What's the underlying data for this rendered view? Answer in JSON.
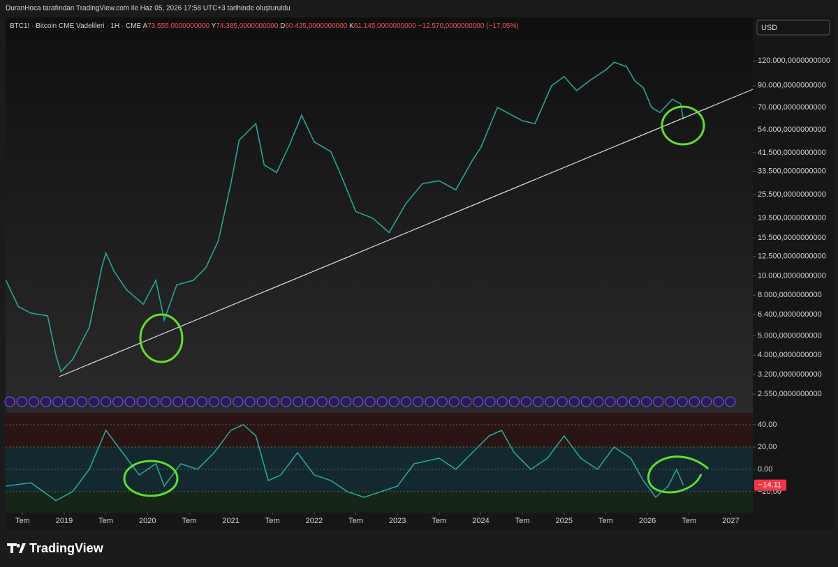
{
  "header": {
    "text": "DuranHoca tarafından TradingView.com ile Haz 05, 2026 17:58 UTC+3 tarihinde oluşturuldu"
  },
  "legend": {
    "symbol": "BTC1! · Bitcoin CME Vadelileri · 1H · CME",
    "open_key": "A",
    "open": "73.555,0000000000",
    "high_key": "Y",
    "high": "74.385,0000000000",
    "low_key": "D",
    "low": "60.435,0000000000",
    "close_key": "K",
    "close": "61.145,0000000000",
    "change": "−12.570,0000000000 (−17,05%)"
  },
  "currency": "USD",
  "brand": "TradingView",
  "chart_data": [
    {
      "type": "line",
      "log_scale": true,
      "color": "#26a69a",
      "xlim": [
        2018.296,
        2027.265
      ],
      "ylim": [
        2120,
        198000
      ],
      "yticks": [
        {
          "value": 120000,
          "label": "120.000,0000000000"
        },
        {
          "value": 90000,
          "label": "90.000,0000000000"
        },
        {
          "value": 70000,
          "label": "70.000,0000000000"
        },
        {
          "value": 54000,
          "label": "54.000,0000000000"
        },
        {
          "value": 41500,
          "label": "41.500,0000000000"
        },
        {
          "value": 33500,
          "label": "33.500,0000000000"
        },
        {
          "value": 25500,
          "label": "25.500,0000000000"
        },
        {
          "value": 19500,
          "label": "19.500,0000000000"
        },
        {
          "value": 15500,
          "label": "15.500,0000000000"
        },
        {
          "value": 12500,
          "label": "12.500,0000000000"
        },
        {
          "value": 10000,
          "label": "10.000,0000000000"
        },
        {
          "value": 8000,
          "label": "8.000,0000000000"
        },
        {
          "value": 6400,
          "label": "6.400,0000000000"
        },
        {
          "value": 5000,
          "label": "5.000,0000000000"
        },
        {
          "value": 4000,
          "label": "4.000,0000000000"
        },
        {
          "value": 3200,
          "label": "3.200,0000000000"
        },
        {
          "value": 2550,
          "label": "2.550,0000000000"
        }
      ],
      "x": [
        2018.3,
        2018.45,
        2018.6,
        2018.8,
        2018.9,
        2018.96,
        2019.1,
        2019.3,
        2019.45,
        2019.5,
        2019.6,
        2019.75,
        2019.95,
        2020.1,
        2020.2,
        2020.35,
        2020.55,
        2020.7,
        2020.85,
        2021.0,
        2021.1,
        2021.3,
        2021.4,
        2021.55,
        2021.7,
        2021.85,
        2022.0,
        2022.2,
        2022.35,
        2022.5,
        2022.7,
        2022.9,
        2023.1,
        2023.3,
        2023.5,
        2023.7,
        2023.9,
        2024.0,
        2024.2,
        2024.5,
        2024.65,
        2024.85,
        2025.0,
        2025.15,
        2025.3,
        2025.5,
        2025.6,
        2025.75,
        2025.85,
        2025.95,
        2026.05,
        2026.15,
        2026.3,
        2026.4,
        2026.43
      ],
      "series": [
        {
          "values": [
            9500,
            7000,
            6500,
            6300,
            4000,
            3300,
            3800,
            5500,
            11000,
            13000,
            10500,
            8500,
            7200,
            9500,
            6000,
            9000,
            9500,
            11000,
            15000,
            29000,
            48000,
            58000,
            36000,
            33000,
            45000,
            64000,
            47000,
            42000,
            30000,
            21000,
            19500,
            16500,
            23000,
            29000,
            30000,
            27000,
            38000,
            44000,
            70000,
            60000,
            58000,
            90000,
            100000,
            85000,
            95000,
            108000,
            118000,
            112000,
            95000,
            88000,
            70000,
            66000,
            77000,
            73000,
            61000
          ]
        }
      ]
    },
    {
      "type": "line",
      "color": "#26a69a",
      "xlim": [
        2018.296,
        2027.265
      ],
      "ylim": [
        -38.75,
        50.6
      ],
      "yticks": [
        {
          "value": 40,
          "label": "40,00"
        },
        {
          "value": 20,
          "label": "20,00"
        },
        {
          "value": 0,
          "label": "0,00"
        },
        {
          "value": -20,
          "label": "−20,00"
        }
      ],
      "xticks": [
        {
          "value": 2018.5,
          "label": "Tem"
        },
        2019,
        {
          "value": 2019.5,
          "label": "Tem"
        },
        2020,
        {
          "value": 2020.5,
          "label": "Tem"
        },
        2021,
        {
          "value": 2021.5,
          "label": "Tem"
        },
        2022,
        {
          "value": 2022.5,
          "label": "Tem"
        },
        2023,
        {
          "value": 2023.5,
          "label": "Tem"
        },
        2024,
        {
          "value": 2024.5,
          "label": "Tem"
        },
        2025,
        {
          "value": 2025.5,
          "label": "Tem"
        },
        2026,
        {
          "value": 2026.5,
          "label": "Tem"
        },
        2027
      ],
      "x": [
        2018.3,
        2018.6,
        2018.9,
        2019.1,
        2019.3,
        2019.5,
        2019.7,
        2019.9,
        2020.1,
        2020.2,
        2020.4,
        2020.6,
        2020.8,
        2021.0,
        2021.15,
        2021.3,
        2021.45,
        2021.6,
        2021.8,
        2022.0,
        2022.2,
        2022.4,
        2022.6,
        2022.8,
        2023.0,
        2023.2,
        2023.5,
        2023.7,
        2023.9,
        2024.1,
        2024.25,
        2024.4,
        2024.6,
        2024.8,
        2025.0,
        2025.2,
        2025.4,
        2025.6,
        2025.8,
        2025.95,
        2026.1,
        2026.25,
        2026.35,
        2026.43
      ],
      "series": [
        {
          "values": [
            -15,
            -12,
            -28,
            -20,
            0,
            35,
            15,
            -5,
            5,
            -15,
            5,
            0,
            15,
            35,
            40,
            30,
            -10,
            -5,
            15,
            -5,
            -10,
            -20,
            -25,
            -20,
            -15,
            5,
            10,
            0,
            15,
            30,
            35,
            15,
            0,
            10,
            30,
            10,
            0,
            20,
            10,
            -10,
            -25,
            -15,
            0,
            -14.11
          ],
          "value_labels": [
            null,
            null,
            null,
            null,
            null,
            null,
            null,
            null,
            null,
            null,
            null,
            null,
            null,
            null,
            null,
            null,
            null,
            null,
            null,
            null,
            null,
            null,
            null,
            null,
            null,
            null,
            null,
            null,
            null,
            null,
            null,
            null,
            null,
            null,
            null,
            null,
            null,
            null,
            null,
            null,
            null,
            null,
            null,
            "−14,11"
          ]
        }
      ]
    }
  ]
}
